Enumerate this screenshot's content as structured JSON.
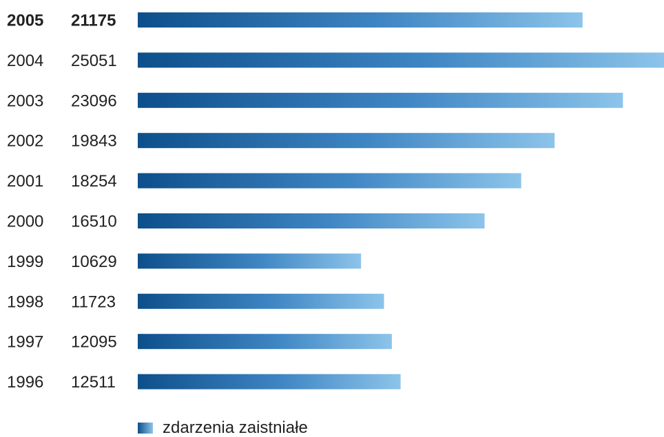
{
  "chart_data": {
    "type": "bar",
    "orientation": "horizontal",
    "title": "",
    "xlabel": "",
    "ylabel": "",
    "categories": [
      "2005",
      "2004",
      "2003",
      "2002",
      "2001",
      "2000",
      "1999",
      "1998",
      "1997",
      "1996"
    ],
    "values": [
      21175,
      25051,
      23096,
      19843,
      18254,
      16510,
      10629,
      11723,
      12095,
      12511
    ],
    "value_labels": [
      "21175",
      "25051",
      "23096",
      "19843",
      "18254",
      "16510",
      "10629",
      "11723",
      "12095",
      "12511"
    ],
    "highlighted_category": "2005",
    "xlim": [
      0,
      25051
    ],
    "grid": false,
    "legend_position": "bottom",
    "series": [
      {
        "name": "zdarzenia zaistniałe",
        "values": [
          21175,
          25051,
          23096,
          19843,
          18254,
          16510,
          10629,
          11723,
          12095,
          12511
        ]
      }
    ],
    "colors": {
      "bar_start": "#0d4f8b",
      "bar_mid": "#3f86c4",
      "bar_end": "#8cc4ea",
      "text": "#222222"
    }
  },
  "legend": {
    "label": "zdarzenia zaistniałe"
  }
}
